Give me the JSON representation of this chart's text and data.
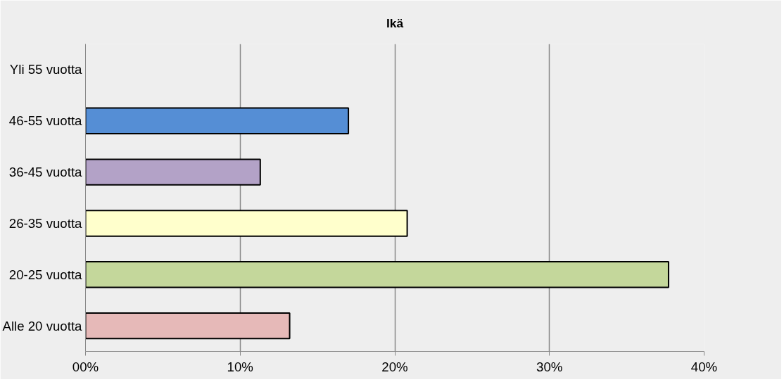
{
  "chart_data": {
    "type": "bar",
    "orientation": "horizontal",
    "title": "Ikä",
    "categories": [
      "Yli 55 vuotta",
      "46-55 vuotta",
      "36-45 vuotta",
      "26-35 vuotta",
      "20-25 vuotta",
      "Alle 20 vuotta"
    ],
    "values": [
      0,
      17.0,
      11.3,
      20.8,
      37.7,
      13.2
    ],
    "colors": [
      null,
      "#558ed5",
      "#b3a2c7",
      "#ffffcc",
      "#c4d79b",
      "#e6b9b8"
    ],
    "xlim": [
      0,
      40
    ],
    "xticks": [
      {
        "value": 0,
        "label": "00%"
      },
      {
        "value": 10,
        "label": "10%"
      },
      {
        "value": 20,
        "label": "20%"
      },
      {
        "value": 30,
        "label": "30%"
      },
      {
        "value": 40,
        "label": "40%"
      }
    ],
    "grid": "x"
  }
}
